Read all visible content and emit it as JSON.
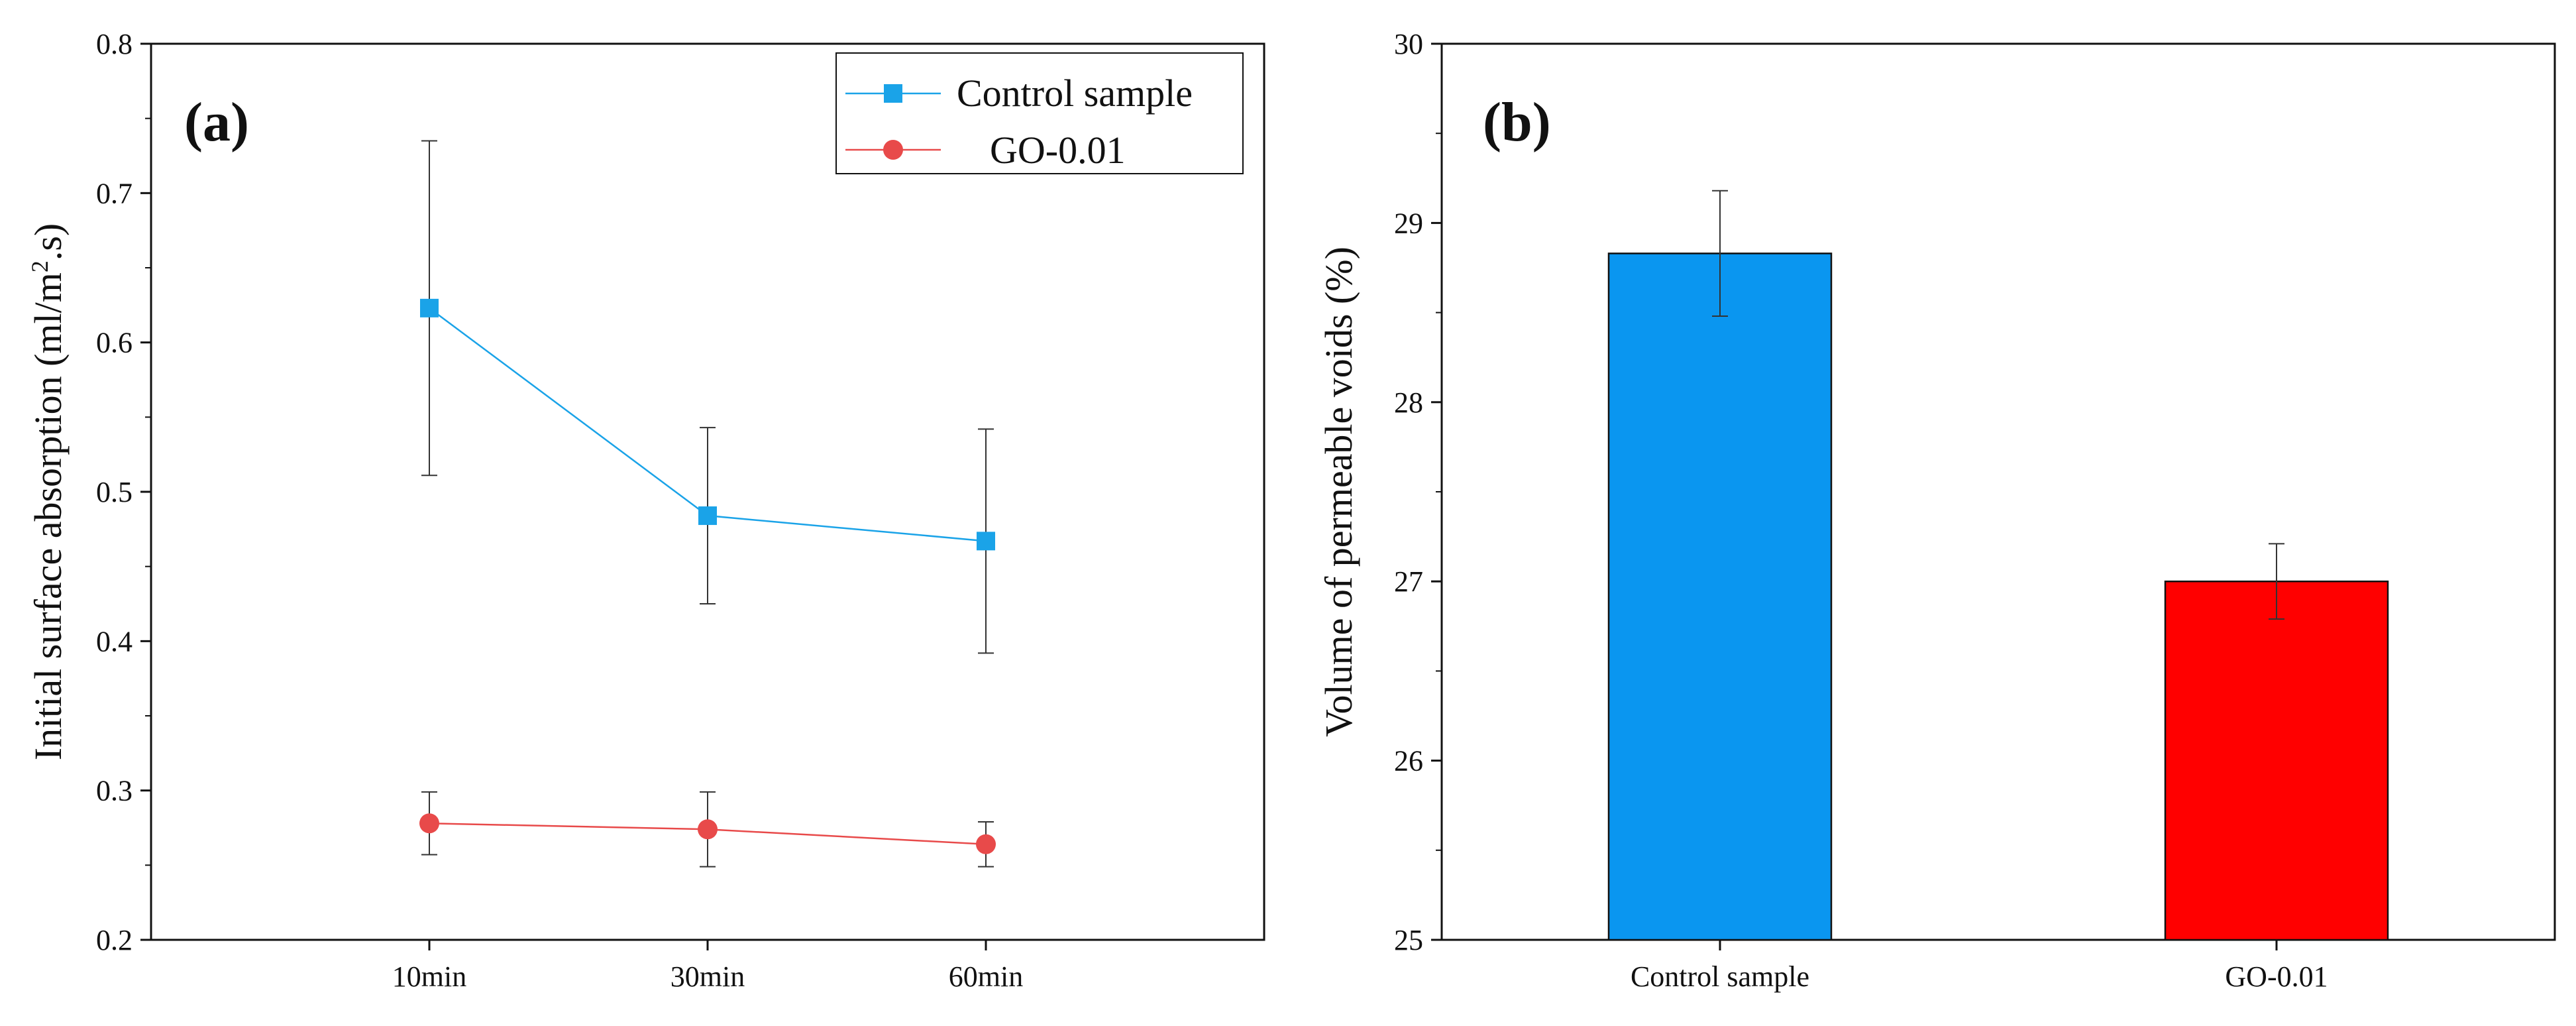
{
  "chart_data": [
    {
      "panel_label": "(a)",
      "type": "line",
      "categories": [
        "10min",
        "30min",
        "60min"
      ],
      "ylabel_main": "Initial surface absorption (ml/m",
      "ylabel_sup": "2",
      "ylabel_tail": ".s)",
      "ylim": [
        0.2,
        0.8
      ],
      "yticks": [
        "0.2",
        "0.3",
        "0.4",
        "0.5",
        "0.6",
        "0.7",
        "0.8"
      ],
      "legend_position": "top-right",
      "series": [
        {
          "name": "Control sample",
          "color": "#1aa3e8",
          "marker": "square",
          "values": [
            0.623,
            0.484,
            0.467
          ],
          "errors": [
            0.112,
            0.059,
            0.075
          ]
        },
        {
          "name": "GO-0.01",
          "color": "#e84a4a",
          "marker": "circle",
          "values": [
            0.278,
            0.274,
            0.264
          ],
          "errors": [
            0.021,
            0.025,
            0.015
          ]
        }
      ]
    },
    {
      "panel_label": "(b)",
      "type": "bar",
      "categories": [
        "Control sample",
        "GO-0.01"
      ],
      "values": [
        28.83,
        27.0
      ],
      "errors": [
        0.35,
        0.21
      ],
      "colors": [
        "#0a96f0",
        "#ff0000"
      ],
      "ylabel": "Volume of permeable voids (%)",
      "ylim": [
        25,
        30
      ],
      "yticks": [
        "25",
        "26",
        "27",
        "28",
        "29",
        "30"
      ]
    }
  ]
}
